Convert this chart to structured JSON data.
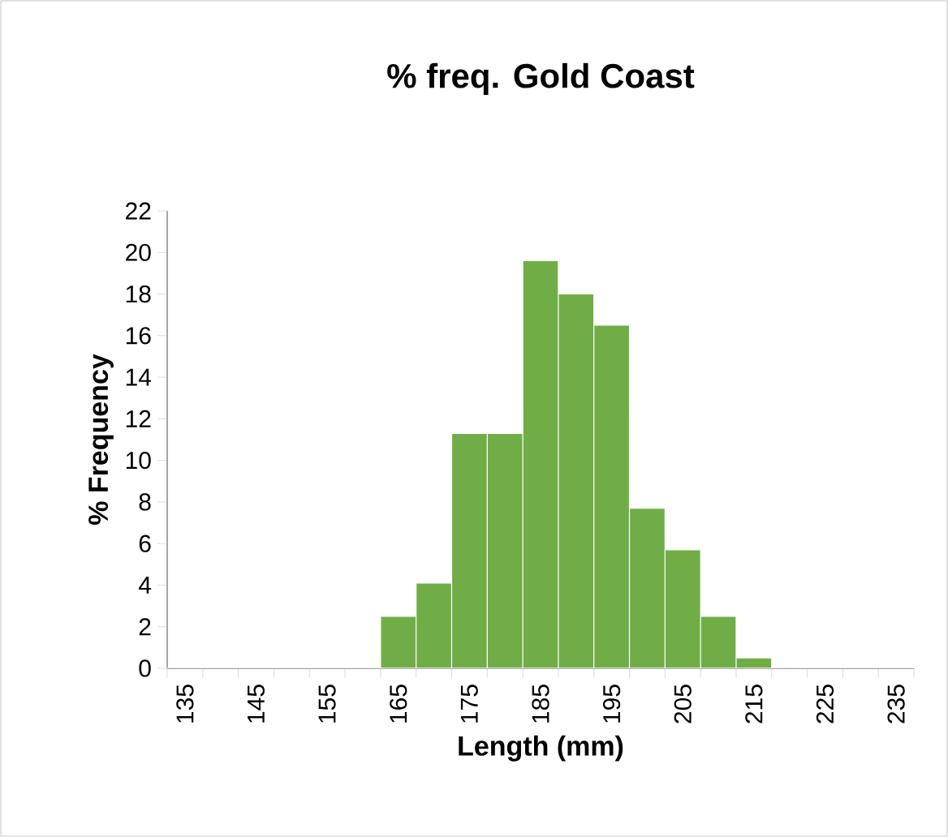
{
  "chart_data": {
    "type": "bar",
    "title": "% freq. Gold Coast",
    "xlabel": "Length (mm)",
    "ylabel": "% Frequency",
    "categories": [
      "135",
      null,
      "145",
      null,
      "155",
      null,
      "165",
      null,
      "175",
      null,
      "185",
      null,
      "195",
      null,
      "205",
      null,
      "215",
      null,
      "225",
      null,
      "235"
    ],
    "values": [
      0,
      0,
      0,
      0,
      0,
      0,
      2.5,
      4.1,
      11.3,
      11.3,
      19.6,
      18.0,
      16.5,
      7.7,
      5.7,
      2.5,
      0.5,
      0,
      0,
      0,
      0
    ],
    "color": "#70ad47",
    "ylim": [
      0,
      22
    ],
    "yticks": [
      0,
      2,
      4,
      6,
      8,
      10,
      12,
      14,
      16,
      18,
      20,
      22
    ],
    "grid": false
  }
}
